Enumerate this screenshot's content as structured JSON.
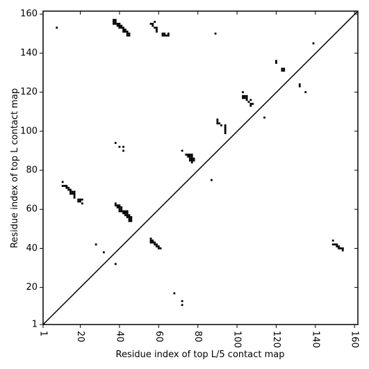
{
  "chart_data": {
    "type": "scatter",
    "marker": "square",
    "color": "#000000",
    "xlabel": "Residue index of top L/5 contact map",
    "ylabel": "Residue index of top L contact map",
    "xlim": [
      1,
      161.7
    ],
    "ylim": [
      1,
      161.5
    ],
    "xticks": [
      1,
      20,
      40,
      60,
      80,
      100,
      120,
      140,
      160
    ],
    "yticks": [
      1,
      20,
      40,
      60,
      80,
      100,
      120,
      140,
      160
    ],
    "x": [
      8,
      37,
      38,
      37,
      38,
      37,
      38,
      39,
      40,
      39,
      40,
      41,
      40,
      41,
      42,
      42,
      43,
      42,
      43,
      44,
      44,
      45,
      45,
      44,
      56,
      57,
      58,
      57,
      58,
      59,
      59,
      59,
      62,
      63,
      63,
      64,
      65,
      65,
      62,
      89,
      139,
      120,
      120,
      123,
      124,
      123,
      124,
      132,
      132,
      135,
      103,
      103,
      104,
      105,
      103,
      104,
      105,
      105,
      106,
      107,
      107,
      108,
      107,
      114,
      90,
      90,
      90,
      91,
      92,
      94,
      94,
      94,
      94,
      94,
      72,
      74,
      75,
      76,
      77,
      75,
      76,
      77,
      76,
      77,
      78,
      76,
      77,
      78,
      77,
      38,
      40,
      42,
      42,
      87,
      11,
      11,
      12,
      13,
      13,
      14,
      14,
      15,
      15,
      16,
      17,
      15,
      16,
      17,
      17,
      17,
      19,
      20,
      21,
      19,
      20,
      21,
      38,
      38,
      39,
      40,
      39,
      40,
      41,
      40,
      41,
      40,
      41,
      42,
      43,
      44,
      42,
      43,
      44,
      43,
      44,
      45,
      44,
      45,
      46,
      45,
      46,
      45,
      46,
      56,
      56,
      56,
      57,
      57,
      58,
      58,
      59,
      59,
      60,
      60,
      61,
      28,
      32,
      38,
      68,
      72,
      72,
      149,
      149,
      150,
      151,
      151,
      152,
      152,
      153,
      154,
      154
    ],
    "y": [
      153,
      157,
      157,
      156,
      156,
      155,
      155,
      155,
      155,
      154,
      154,
      154,
      153,
      153,
      153,
      152,
      152,
      151,
      151,
      151,
      150,
      150,
      149,
      149,
      155,
      155,
      156,
      154,
      153,
      153,
      152,
      151,
      150,
      150,
      149,
      149,
      150,
      149,
      149,
      150,
      145,
      136,
      135,
      132,
      132,
      131,
      131,
      124,
      123,
      120,
      120,
      118,
      118,
      118,
      117,
      117,
      117,
      116,
      115,
      116,
      114,
      114,
      113,
      107,
      106,
      105,
      104,
      104,
      103,
      103,
      102,
      101,
      100,
      99,
      90,
      88,
      88,
      88,
      88,
      87,
      87,
      87,
      86,
      86,
      86,
      85,
      85,
      85,
      84,
      94,
      92,
      92,
      90,
      75,
      74,
      72,
      72,
      72,
      71,
      71,
      70,
      70,
      69,
      69,
      69,
      68,
      68,
      68,
      67,
      66,
      65,
      65,
      65,
      64,
      64,
      63,
      63,
      62,
      62,
      62,
      61,
      61,
      61,
      60,
      60,
      59,
      59,
      59,
      59,
      59,
      58,
      58,
      58,
      57,
      57,
      57,
      56,
      56,
      56,
      55,
      55,
      54,
      54,
      45,
      44,
      43,
      44,
      43,
      43,
      42,
      42,
      41,
      41,
      40,
      40,
      42,
      38,
      32,
      17,
      13,
      11,
      44,
      42,
      42,
      42,
      41,
      41,
      40,
      40,
      40,
      39
    ]
  }
}
